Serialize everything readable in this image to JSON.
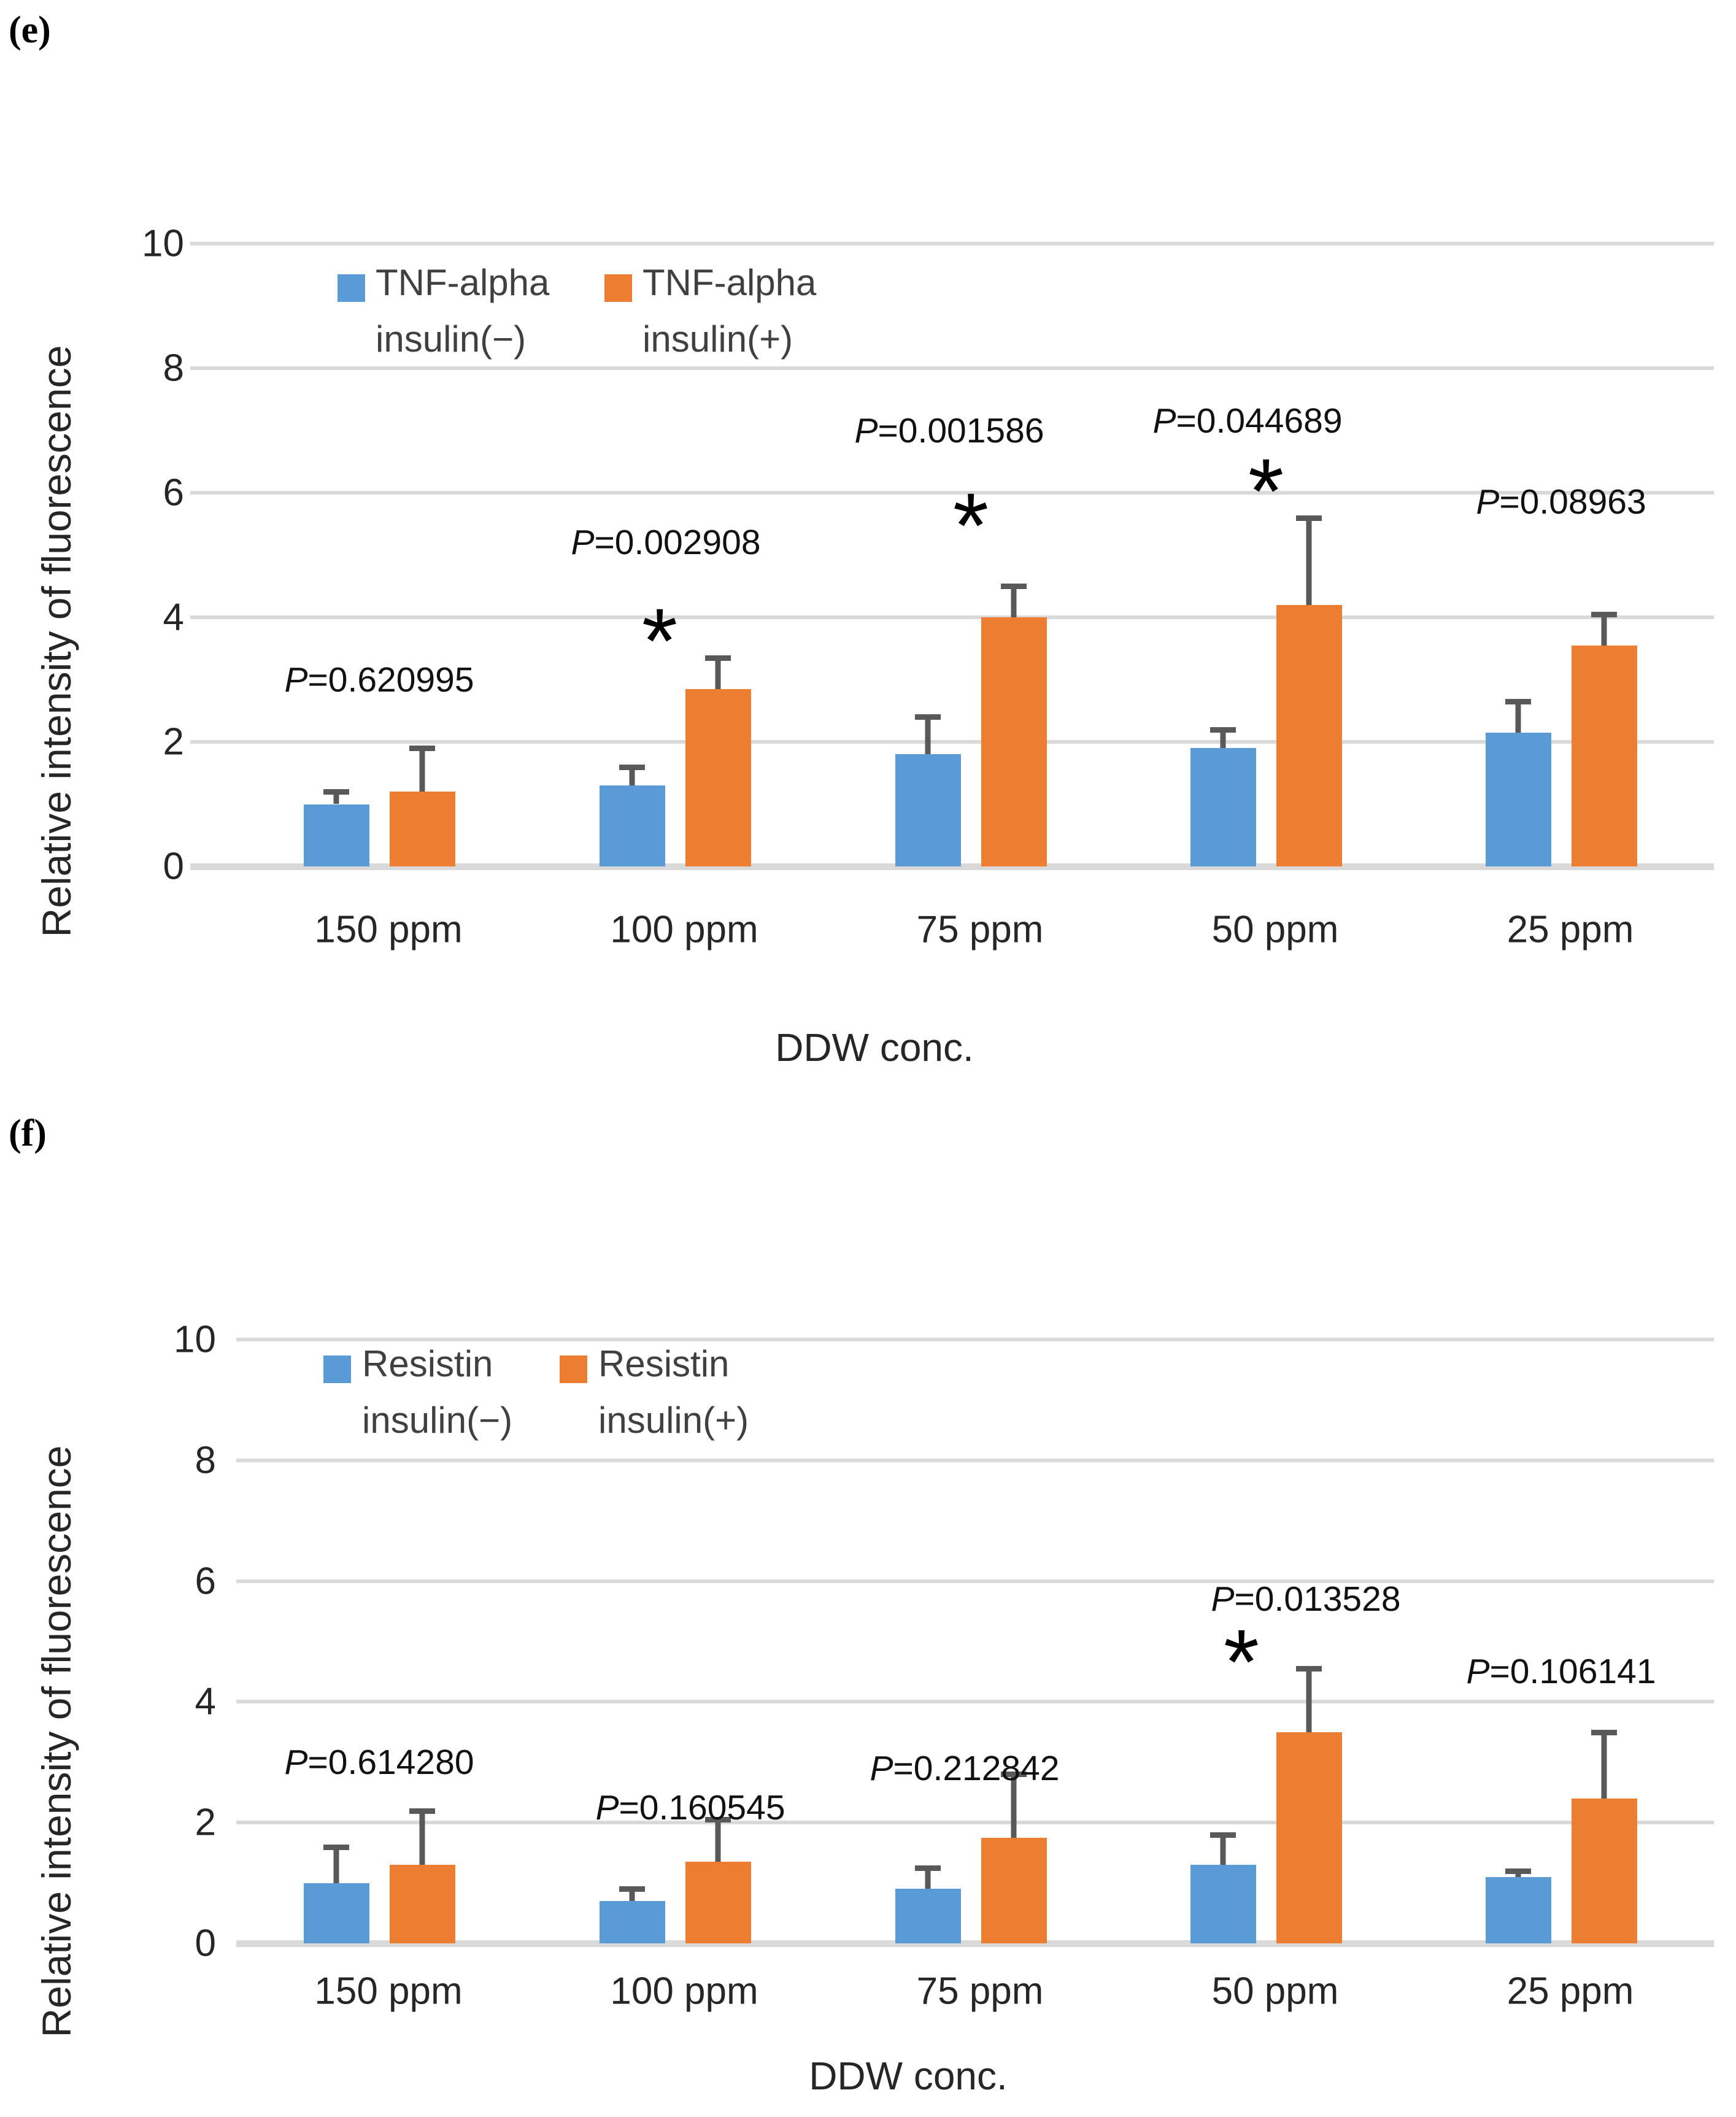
{
  "significance_marker": "*",
  "colors": {
    "series_minus": "#5B9BD5",
    "series_plus": "#ED7D31",
    "error_bar": "#595959",
    "gridline": "#d9d9d9",
    "text": "#262626"
  },
  "chart_data": [
    {
      "panel_label": "(e)",
      "type": "bar",
      "title": "",
      "xlabel": "DDW conc.",
      "ylabel": "Relative intensity of fluorescence",
      "ylim": [
        0,
        10
      ],
      "yticks": [
        0,
        2,
        4,
        6,
        8,
        10
      ],
      "grid": true,
      "legend_position": "top-left-inside",
      "categories": [
        "150 ppm",
        "100 ppm",
        "75 ppm",
        "50 ppm",
        "25 ppm"
      ],
      "series": [
        {
          "name": "TNF-alpha insulin(−)",
          "legend_lines": [
            "TNF-alpha",
            "insulin(−)"
          ],
          "color": "#5B9BD5",
          "values": [
            1.0,
            1.3,
            1.8,
            1.9,
            2.15
          ],
          "errors_plus": [
            0.2,
            0.3,
            0.6,
            0.3,
            0.5
          ]
        },
        {
          "name": "TNF-alpha insulin(+)",
          "legend_lines": [
            "TNF-alpha",
            "insulin(+)"
          ],
          "color": "#ED7D31",
          "values": [
            1.2,
            2.85,
            4.0,
            4.2,
            3.55
          ],
          "errors_plus": [
            0.7,
            0.5,
            0.5,
            1.4,
            0.5
          ]
        }
      ],
      "annotations": [
        {
          "category_index": 0,
          "label": "P=0.620995",
          "y": 3.0,
          "dx": 0,
          "asterisk": false,
          "asterisk_y": null,
          "asterisk_dx": 0
        },
        {
          "category_index": 1,
          "label": "P=0.002908",
          "y": 5.2,
          "dx": -15,
          "asterisk": true,
          "asterisk_y": 3.95,
          "asterisk_dx": -25
        },
        {
          "category_index": 2,
          "label": "P=0.001586",
          "y": 7.0,
          "dx": -35,
          "asterisk": true,
          "asterisk_y": 5.8,
          "asterisk_dx": 0
        },
        {
          "category_index": 3,
          "label": "P=0.044689",
          "y": 7.15,
          "dx": -30,
          "asterisk": true,
          "asterisk_y": 6.35,
          "asterisk_dx": 0
        },
        {
          "category_index": 4,
          "label": "P=0.08963",
          "y": 5.85,
          "dx": 0,
          "asterisk": false,
          "asterisk_y": null,
          "asterisk_dx": 0
        }
      ]
    },
    {
      "panel_label": "(f)",
      "type": "bar",
      "title": "",
      "xlabel": "DDW conc.",
      "ylabel": "Relative intensity of fluorescence",
      "ylim": [
        0,
        10
      ],
      "yticks": [
        0,
        2,
        4,
        6,
        8,
        10
      ],
      "grid": true,
      "legend_position": "top-left-inside",
      "categories": [
        "150 ppm",
        "100 ppm",
        "75 ppm",
        "50 ppm",
        "25 ppm"
      ],
      "series": [
        {
          "name": "Resistin insulin(−)",
          "legend_lines": [
            "Resistin",
            "insulin(−)"
          ],
          "color": "#5B9BD5",
          "values": [
            1.0,
            0.7,
            0.9,
            1.3,
            1.1
          ],
          "errors_plus": [
            0.6,
            0.2,
            0.35,
            0.5,
            0.1
          ]
        },
        {
          "name": "Resistin insulin(+)",
          "legend_lines": [
            "Resistin",
            "insulin(+)"
          ],
          "color": "#ED7D31",
          "values": [
            1.3,
            1.35,
            1.75,
            3.5,
            2.4
          ],
          "errors_plus": [
            0.9,
            0.7,
            1.05,
            1.05,
            1.1
          ]
        }
      ],
      "annotations": [
        {
          "category_index": 0,
          "label": "P=0.614280",
          "y": 3.0,
          "dx": 0,
          "asterisk": false,
          "asterisk_y": null,
          "asterisk_dx": 0
        },
        {
          "category_index": 1,
          "label": "P=0.160545",
          "y": 2.25,
          "dx": 25,
          "asterisk": false,
          "asterisk_y": null,
          "asterisk_dx": 0
        },
        {
          "category_index": 2,
          "label": "P=0.212842",
          "y": 2.9,
          "dx": -10,
          "asterisk": false,
          "asterisk_y": null,
          "asterisk_dx": 0
        },
        {
          "category_index": 3,
          "label": "P=0.013528",
          "y": 5.7,
          "dx": 65,
          "asterisk": true,
          "asterisk_y": 5.0,
          "asterisk_dx": -40
        },
        {
          "category_index": 4,
          "label": "P=0.106141",
          "y": 4.5,
          "dx": 0,
          "asterisk": false,
          "asterisk_y": null,
          "asterisk_dx": 0
        }
      ]
    }
  ]
}
